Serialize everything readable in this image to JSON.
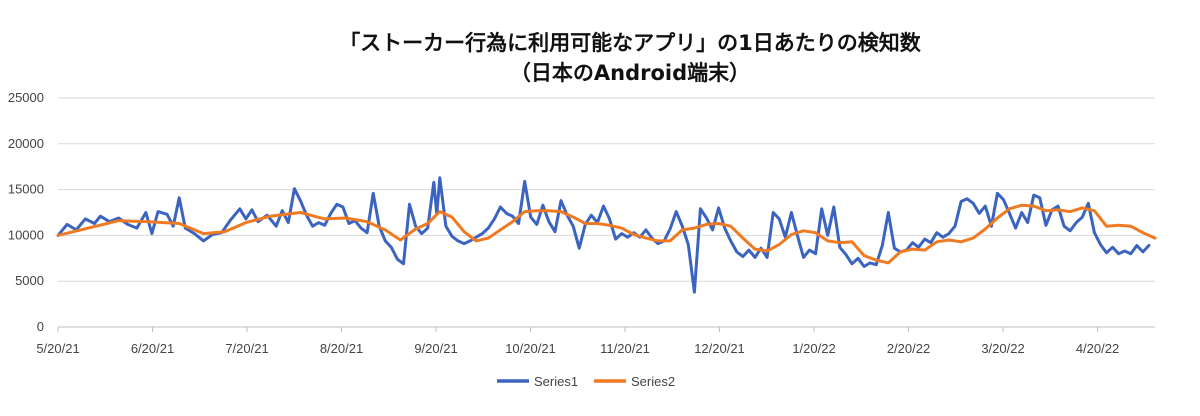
{
  "chart_data": {
    "type": "line",
    "title_line1": "「ストーカー行為に利用可能なアプリ」の1日あたりの検知数",
    "title_line2": "（日本のAndroid端末）",
    "xlabel": "",
    "ylabel": "",
    "ylim": [
      0,
      25000
    ],
    "yticks": [
      "0",
      "5000",
      "10000",
      "15000",
      "20000",
      "25000"
    ],
    "xticks": [
      "5/20/21",
      "6/20/21",
      "7/20/21",
      "8/20/21",
      "9/20/21",
      "10/20/21",
      "11/20/21",
      "12/20/21",
      "1/20/22",
      "2/20/22",
      "3/20/22",
      "4/20/22"
    ],
    "x_range_days": [
      0,
      362
    ],
    "grid": true,
    "legend_position": "bottom",
    "series": [
      {
        "name": "Series1",
        "color": "#3b64c0",
        "points": [
          [
            0,
            10000
          ],
          [
            3,
            11200
          ],
          [
            6,
            10600
          ],
          [
            9,
            11800
          ],
          [
            12,
            11300
          ],
          [
            14,
            12100
          ],
          [
            17,
            11500
          ],
          [
            20,
            11900
          ],
          [
            23,
            11200
          ],
          [
            26,
            10800
          ],
          [
            29,
            12500
          ],
          [
            31,
            10200
          ],
          [
            33,
            12600
          ],
          [
            36,
            12300
          ],
          [
            38,
            11000
          ],
          [
            40,
            14100
          ],
          [
            42,
            10800
          ],
          [
            45,
            10200
          ],
          [
            48,
            9400
          ],
          [
            51,
            10100
          ],
          [
            54,
            10300
          ],
          [
            57,
            11700
          ],
          [
            60,
            12900
          ],
          [
            62,
            11800
          ],
          [
            64,
            12800
          ],
          [
            66,
            11500
          ],
          [
            69,
            12200
          ],
          [
            72,
            11000
          ],
          [
            74,
            12700
          ],
          [
            76,
            11400
          ],
          [
            78,
            15100
          ],
          [
            80,
            13800
          ],
          [
            82,
            12200
          ],
          [
            84,
            11000
          ],
          [
            86,
            11400
          ],
          [
            88,
            11100
          ],
          [
            90,
            12400
          ],
          [
            92,
            13400
          ],
          [
            94,
            13100
          ],
          [
            96,
            11300
          ],
          [
            98,
            11600
          ],
          [
            100,
            10800
          ],
          [
            102,
            10300
          ],
          [
            104,
            14600
          ],
          [
            106,
            11000
          ],
          [
            108,
            9400
          ],
          [
            110,
            8700
          ],
          [
            112,
            7400
          ],
          [
            114,
            6900
          ],
          [
            116,
            13400
          ],
          [
            118,
            11000
          ],
          [
            120,
            10200
          ],
          [
            122,
            10800
          ],
          [
            124,
            15800
          ],
          [
            125,
            12300
          ],
          [
            126,
            16300
          ],
          [
            128,
            11000
          ],
          [
            130,
            9900
          ],
          [
            132,
            9400
          ],
          [
            134,
            9100
          ],
          [
            136,
            9400
          ],
          [
            138,
            9800
          ],
          [
            140,
            10200
          ],
          [
            142,
            10800
          ],
          [
            144,
            11800
          ],
          [
            146,
            13100
          ],
          [
            148,
            12400
          ],
          [
            150,
            12100
          ],
          [
            152,
            11300
          ],
          [
            154,
            15900
          ],
          [
            156,
            12000
          ],
          [
            158,
            11200
          ],
          [
            160,
            13300
          ],
          [
            162,
            11500
          ],
          [
            164,
            10400
          ],
          [
            166,
            13800
          ],
          [
            168,
            12200
          ],
          [
            170,
            11000
          ],
          [
            172,
            8600
          ],
          [
            174,
            11200
          ],
          [
            176,
            12200
          ],
          [
            178,
            11400
          ],
          [
            180,
            13200
          ],
          [
            182,
            11800
          ],
          [
            184,
            9600
          ],
          [
            186,
            10200
          ],
          [
            188,
            9800
          ],
          [
            190,
            10300
          ],
          [
            192,
            9800
          ],
          [
            194,
            10600
          ],
          [
            196,
            9700
          ],
          [
            198,
            9100
          ],
          [
            200,
            9400
          ],
          [
            202,
            10700
          ],
          [
            204,
            12600
          ],
          [
            206,
            11000
          ],
          [
            208,
            9000
          ],
          [
            210,
            3800
          ],
          [
            212,
            12900
          ],
          [
            214,
            11900
          ],
          [
            216,
            10600
          ],
          [
            218,
            13000
          ],
          [
            220,
            10800
          ],
          [
            222,
            9400
          ],
          [
            224,
            8200
          ],
          [
            226,
            7700
          ],
          [
            228,
            8400
          ],
          [
            230,
            7600
          ],
          [
            232,
            8600
          ],
          [
            234,
            7600
          ],
          [
            236,
            12500
          ],
          [
            238,
            11800
          ],
          [
            240,
            9800
          ],
          [
            242,
            12500
          ],
          [
            244,
            10000
          ],
          [
            246,
            7600
          ],
          [
            248,
            8400
          ],
          [
            250,
            8000
          ],
          [
            252,
            12900
          ],
          [
            254,
            10000
          ],
          [
            256,
            13100
          ],
          [
            258,
            8700
          ],
          [
            260,
            7900
          ],
          [
            262,
            6900
          ],
          [
            264,
            7500
          ],
          [
            266,
            6600
          ],
          [
            268,
            7000
          ],
          [
            270,
            6800
          ],
          [
            272,
            8900
          ],
          [
            274,
            12500
          ],
          [
            276,
            8600
          ],
          [
            278,
            8200
          ],
          [
            280,
            8400
          ],
          [
            282,
            9200
          ],
          [
            284,
            8700
          ],
          [
            286,
            9600
          ],
          [
            288,
            9200
          ],
          [
            290,
            10300
          ],
          [
            292,
            9800
          ],
          [
            294,
            10200
          ],
          [
            296,
            11000
          ],
          [
            298,
            13700
          ],
          [
            300,
            14000
          ],
          [
            302,
            13500
          ],
          [
            304,
            12400
          ],
          [
            306,
            13200
          ],
          [
            308,
            11000
          ],
          [
            310,
            14600
          ],
          [
            312,
            13900
          ],
          [
            314,
            12400
          ],
          [
            316,
            10800
          ],
          [
            318,
            12500
          ],
          [
            320,
            11400
          ],
          [
            322,
            14400
          ],
          [
            324,
            14100
          ],
          [
            326,
            11100
          ],
          [
            328,
            12800
          ],
          [
            330,
            13200
          ],
          [
            332,
            11000
          ],
          [
            334,
            10500
          ],
          [
            336,
            11400
          ],
          [
            338,
            12000
          ],
          [
            340,
            13500
          ],
          [
            342,
            10300
          ],
          [
            344,
            9000
          ],
          [
            346,
            8100
          ],
          [
            348,
            8700
          ],
          [
            350,
            8000
          ],
          [
            352,
            8300
          ],
          [
            354,
            8000
          ],
          [
            356,
            8900
          ],
          [
            358,
            8200
          ],
          [
            360,
            8900
          ]
        ]
      },
      {
        "name": "Series2",
        "color": "#f07a22",
        "points": [
          [
            0,
            10000
          ],
          [
            10,
            10800
          ],
          [
            20,
            11600
          ],
          [
            30,
            11500
          ],
          [
            40,
            11300
          ],
          [
            48,
            10200
          ],
          [
            55,
            10400
          ],
          [
            62,
            11400
          ],
          [
            70,
            12100
          ],
          [
            80,
            12500
          ],
          [
            88,
            11800
          ],
          [
            95,
            11900
          ],
          [
            102,
            11500
          ],
          [
            108,
            10600
          ],
          [
            113,
            9500
          ],
          [
            118,
            10700
          ],
          [
            122,
            11300
          ],
          [
            126,
            12600
          ],
          [
            130,
            12000
          ],
          [
            134,
            10400
          ],
          [
            138,
            9400
          ],
          [
            142,
            9700
          ],
          [
            146,
            10600
          ],
          [
            150,
            11500
          ],
          [
            154,
            12600
          ],
          [
            158,
            12700
          ],
          [
            162,
            12700
          ],
          [
            166,
            12600
          ],
          [
            170,
            12000
          ],
          [
            174,
            11300
          ],
          [
            178,
            11300
          ],
          [
            182,
            11100
          ],
          [
            186,
            10800
          ],
          [
            190,
            10100
          ],
          [
            194,
            9700
          ],
          [
            198,
            9400
          ],
          [
            202,
            9400
          ],
          [
            206,
            10600
          ],
          [
            210,
            10800
          ],
          [
            214,
            11200
          ],
          [
            218,
            11300
          ],
          [
            222,
            11000
          ],
          [
            226,
            9700
          ],
          [
            230,
            8500
          ],
          [
            234,
            8300
          ],
          [
            238,
            9000
          ],
          [
            242,
            10100
          ],
          [
            246,
            10500
          ],
          [
            250,
            10300
          ],
          [
            254,
            9400
          ],
          [
            258,
            9200
          ],
          [
            262,
            9300
          ],
          [
            266,
            7800
          ],
          [
            270,
            7300
          ],
          [
            274,
            7000
          ],
          [
            278,
            8200
          ],
          [
            282,
            8500
          ],
          [
            286,
            8400
          ],
          [
            290,
            9300
          ],
          [
            294,
            9500
          ],
          [
            298,
            9300
          ],
          [
            302,
            9700
          ],
          [
            306,
            10700
          ],
          [
            310,
            11900
          ],
          [
            314,
            12900
          ],
          [
            318,
            13300
          ],
          [
            322,
            13200
          ],
          [
            326,
            12700
          ],
          [
            330,
            12800
          ],
          [
            334,
            12600
          ],
          [
            338,
            13000
          ],
          [
            342,
            12700
          ],
          [
            346,
            11000
          ],
          [
            350,
            11100
          ],
          [
            354,
            11000
          ],
          [
            358,
            10300
          ],
          [
            362,
            9700
          ]
        ]
      }
    ]
  }
}
